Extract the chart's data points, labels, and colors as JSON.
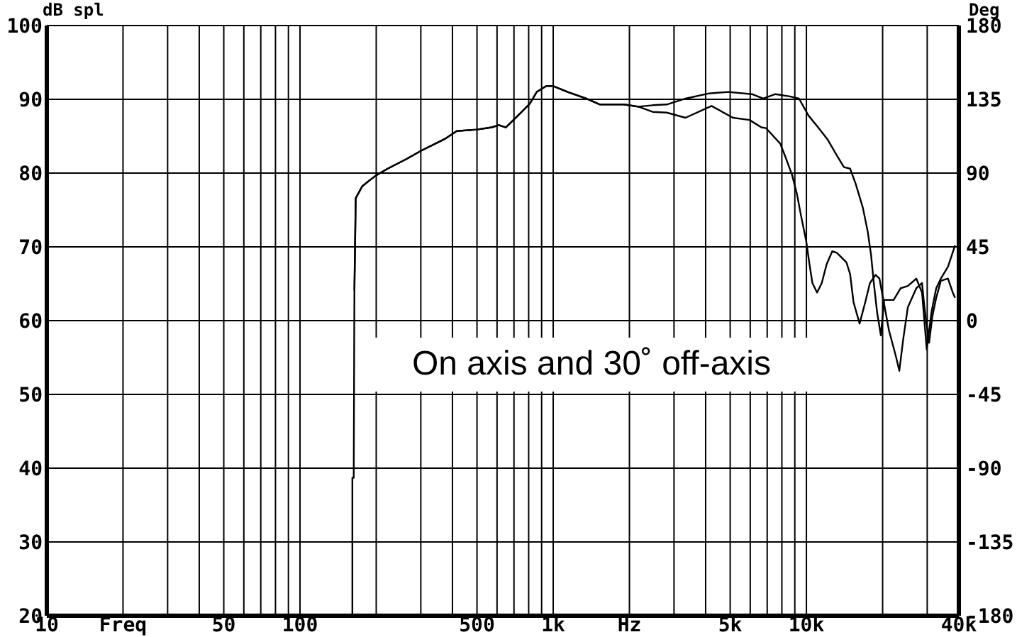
{
  "chart_data": {
    "type": "line",
    "ylabel": "dB spl",
    "y2label": "Deg",
    "annotations": [
      "On axis and 30˚ off-axis"
    ],
    "log": "x",
    "grid": true,
    "xlim": [
      10,
      40000
    ],
    "xticks": [
      10,
      {
        "value": 20,
        "label": "Freq"
      },
      {
        "value": 30,
        "label": null
      },
      {
        "value": 40,
        "label": null
      },
      50,
      {
        "value": 60,
        "label": null
      },
      {
        "value": 70,
        "label": null
      },
      {
        "value": 80,
        "label": null
      },
      {
        "value": 90,
        "label": null
      },
      100,
      {
        "value": 200,
        "label": null
      },
      {
        "value": 300,
        "label": null
      },
      {
        "value": 400,
        "label": null
      },
      500,
      {
        "value": 600,
        "label": null
      },
      {
        "value": 700,
        "label": null
      },
      {
        "value": 800,
        "label": null
      },
      {
        "value": 900,
        "label": null
      },
      {
        "value": 1000,
        "label": "1k"
      },
      {
        "value": 2000,
        "label": "Hz"
      },
      {
        "value": 3000,
        "label": null
      },
      {
        "value": 4000,
        "label": null
      },
      {
        "value": 5000,
        "label": "5k"
      },
      {
        "value": 6000,
        "label": null
      },
      {
        "value": 7000,
        "label": null
      },
      {
        "value": 8000,
        "label": null
      },
      {
        "value": 9000,
        "label": null
      },
      {
        "value": 10000,
        "label": "10k"
      },
      {
        "value": 20000,
        "label": null
      },
      {
        "value": 30000,
        "label": null
      },
      {
        "value": 40000,
        "label": "40k"
      }
    ],
    "ylim": [
      20,
      100
    ],
    "yticks": [
      20,
      30,
      40,
      50,
      60,
      70,
      80,
      90,
      100
    ],
    "y2lim": [
      -180,
      180
    ],
    "y2ticks": [
      -180,
      -135,
      -90,
      -45,
      0,
      45,
      90,
      135,
      180
    ],
    "series": [
      {
        "color": "#000000",
        "x": [
          164,
          166,
          176,
          188,
          200,
          222,
          263,
          300,
          372,
          416,
          500,
          572,
          610,
          650,
          726,
          808,
          861,
          939,
          1000,
          1140,
          1350,
          1530,
          1900,
          2170,
          2470,
          2810,
          3330,
          4130,
          4910,
          6090,
          6750,
          7550,
          8590,
          9350,
          10190,
          11120,
          12100,
          13190,
          14070,
          14880,
          15670,
          16710,
          17460,
          17990,
          18460,
          19010,
          19680,
          20280,
          22100,
          23580,
          25150,
          27180,
          28620,
          29870,
          31200,
          32560,
          33960,
          36230,
          38650
        ],
        "values": [
          64.1,
          76.6,
          78.2,
          79.0,
          79.7,
          80.6,
          81.9,
          83.0,
          84.6,
          85.7,
          85.9,
          86.2,
          86.5,
          86.2,
          87.8,
          89.4,
          91.0,
          91.8,
          91.8,
          91.0,
          90.1,
          89.3,
          89.3,
          89.0,
          89.2,
          89.3,
          90.1,
          90.8,
          91.0,
          90.7,
          90.1,
          90.7,
          90.4,
          90.1,
          87.8,
          86.2,
          84.6,
          82.4,
          80.8,
          80.6,
          78.5,
          75.3,
          72.1,
          69.0,
          65.1,
          61.2,
          58.0,
          62.8,
          62.8,
          64.4,
          64.7,
          65.7,
          63.8,
          56.1,
          61.2,
          64.4,
          65.7,
          67.3,
          70.2
        ]
      },
      {
        "color": "#000000",
        "x": [
          161,
          161,
          163,
          164,
          166,
          176,
          188,
          200,
          222,
          263,
          300,
          372,
          416,
          500,
          572,
          610,
          650,
          726,
          808,
          861,
          939,
          1000,
          1140,
          1350,
          1530,
          1900,
          2170,
          2470,
          2810,
          3330,
          4220,
          5130,
          5960,
          6640,
          6920,
          7880,
          8220,
          8770,
          9170,
          9550,
          9980,
          10290,
          10560,
          11020,
          11500,
          12010,
          12650,
          13190,
          14390,
          14880,
          15350,
          16220,
          17080,
          17820,
          18760,
          19430,
          21180,
          22590,
          23280,
          24100,
          25150,
          27180,
          28620,
          29250,
          30520,
          31450,
          32560,
          33960,
          36230,
          37850,
          38650
        ],
        "values": [
          20,
          38.7,
          38.7,
          64.1,
          76.6,
          78.2,
          79.0,
          79.7,
          80.6,
          81.9,
          83.0,
          84.6,
          85.7,
          85.9,
          86.2,
          86.5,
          86.2,
          87.8,
          89.4,
          91.0,
          91.8,
          91.8,
          91.0,
          90.1,
          89.3,
          89.3,
          89.0,
          88.3,
          88.2,
          87.5,
          89.1,
          87.5,
          87.2,
          86.2,
          86.1,
          84.0,
          82.4,
          79.8,
          77.2,
          74.0,
          70.8,
          67.6,
          65.1,
          63.8,
          65.1,
          67.6,
          69.4,
          69.2,
          67.9,
          66.3,
          62.5,
          59.6,
          62.5,
          65.1,
          66.2,
          65.7,
          58.7,
          55.1,
          53.2,
          57.4,
          61.8,
          64.4,
          65.1,
          61.8,
          57.0,
          60.6,
          63.1,
          65.4,
          65.7,
          63.8,
          63.1
        ]
      }
    ]
  }
}
